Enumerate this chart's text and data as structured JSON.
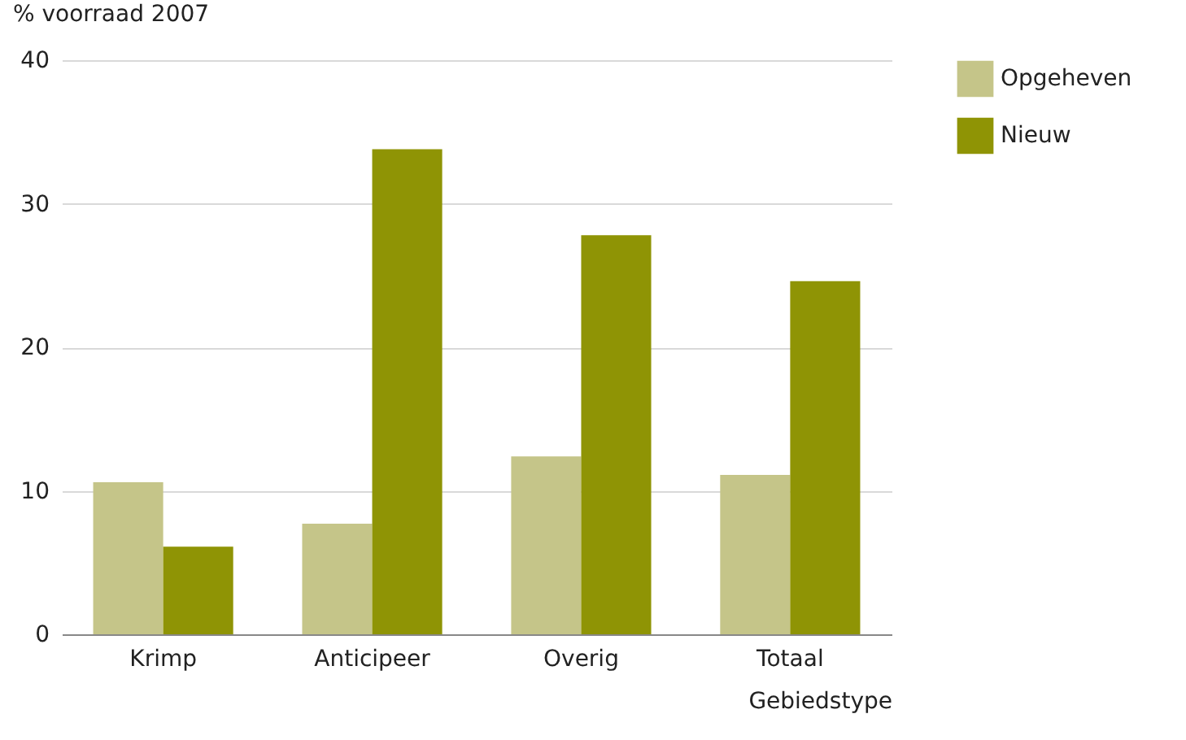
{
  "chart_data": {
    "type": "bar",
    "xlabel": "Gebiedstype",
    "ylabel": "% voorraad 2007",
    "categories": [
      "Krimp",
      "Anticipeer",
      "Overig",
      "Totaal"
    ],
    "series": [
      {
        "name": "Opgeheven",
        "color": "#c5c589",
        "values": [
          10.6,
          7.7,
          12.4,
          11.1
        ]
      },
      {
        "name": "Nieuw",
        "color": "#8f9405",
        "values": [
          6.1,
          33.8,
          27.8,
          24.6
        ]
      }
    ],
    "ylim": [
      0,
      40
    ],
    "yticks": [
      0,
      10,
      20,
      30,
      40
    ],
    "grid": "y",
    "legend": "top right"
  }
}
